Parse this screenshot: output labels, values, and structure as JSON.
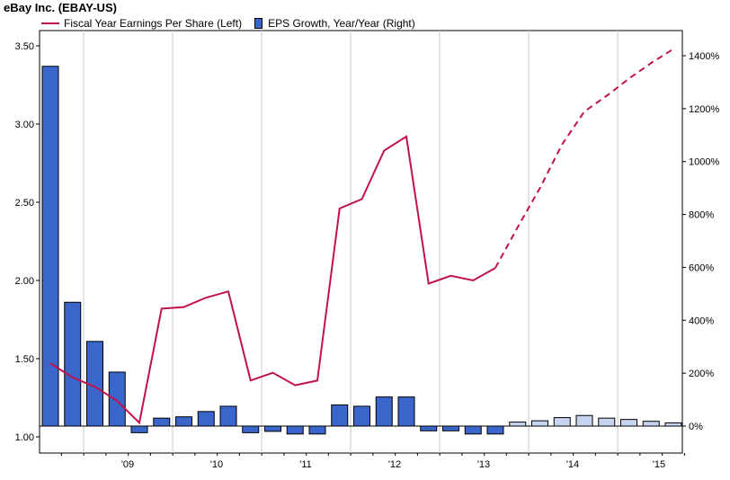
{
  "title": "eBay Inc. (EBAY-US)",
  "colors": {
    "eps_line": "#c0134a",
    "growth_bar": "#3a66cc",
    "growth_bar_estimate": "#c6d4ef",
    "grid": "#c8c8c8"
  },
  "chart_data": {
    "type": "bar+line",
    "title": "eBay Inc. (EBAY-US)",
    "legend": [
      "Fiscal Year Earnings Per Share (Left)",
      "EPS Growth, Year/Year (Right)"
    ],
    "legend_position": "top-left",
    "grid": true,
    "x_tick_labels": [
      "'09",
      "'10",
      "'11",
      "'12",
      "'13",
      "'14",
      "'15"
    ],
    "left_axis": {
      "ticks": [
        "1.00",
        "1.50",
        "2.00",
        "2.50",
        "3.00",
        "3.50"
      ],
      "ylim": [
        1.0,
        3.6
      ]
    },
    "right_axis": {
      "ticks": [
        "0%",
        "200%",
        "400%",
        "600%",
        "800%",
        "1000%",
        "1200%",
        "1400%"
      ],
      "ylim": [
        -50,
        1450
      ]
    },
    "series": [
      {
        "name": "Fiscal Year Earnings Per Share (Left)",
        "kind": "line",
        "axis": "left",
        "x": [
          0,
          1,
          2,
          3,
          4,
          5,
          6,
          7,
          8,
          9,
          10,
          11,
          12,
          13,
          14,
          15,
          16,
          17,
          18,
          19,
          20,
          21,
          22,
          23,
          24,
          25,
          26,
          27,
          28
        ],
        "values": [
          1.47,
          1.38,
          1.32,
          1.23,
          1.09,
          1.82,
          1.83,
          1.89,
          1.93,
          1.36,
          1.41,
          1.33,
          1.36,
          2.46,
          2.52,
          2.83,
          2.92,
          1.98,
          2.03,
          2.0,
          2.08,
          2.34,
          2.59,
          2.87,
          3.08,
          3.18,
          3.29,
          3.39,
          3.48
        ],
        "estimate_from_index": 20
      },
      {
        "name": "EPS Growth, Year/Year (Right)",
        "kind": "bar",
        "axis": "right",
        "x": [
          0,
          1,
          2,
          3,
          4,
          5,
          6,
          7,
          8,
          9,
          10,
          11,
          12,
          13,
          14,
          15,
          16,
          17,
          18,
          19,
          20,
          21,
          22,
          23,
          24,
          25,
          26,
          27,
          28
        ],
        "values": [
          1360,
          468,
          320,
          204,
          -25,
          30,
          35,
          55,
          75,
          -25,
          -20,
          -30,
          -30,
          80,
          75,
          110,
          110,
          -18,
          -18,
          -30,
          -30,
          15,
          20,
          32,
          40,
          30,
          25,
          18,
          12
        ],
        "estimate_from_index": 21
      }
    ]
  }
}
